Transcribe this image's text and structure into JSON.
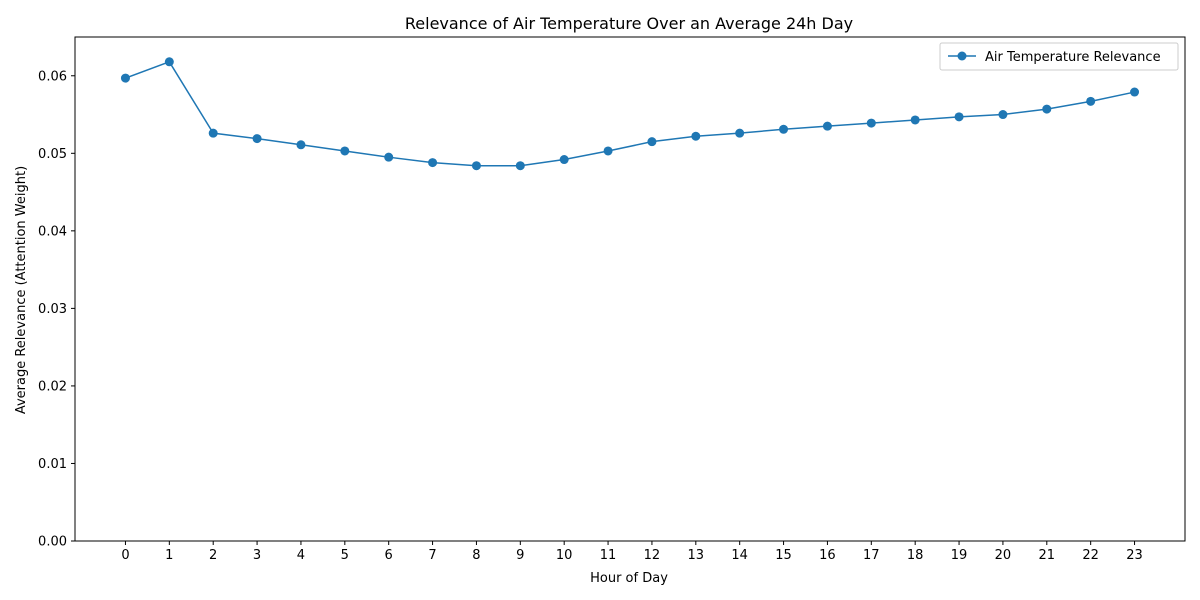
{
  "chart_data": {
    "type": "line",
    "title": "Relevance of Air Temperature Over an Average 24h Day",
    "xlabel": "Hour of Day",
    "ylabel": "Average Relevance (Attention Weight)",
    "x": [
      0,
      1,
      2,
      3,
      4,
      5,
      6,
      7,
      8,
      9,
      10,
      11,
      12,
      13,
      14,
      15,
      16,
      17,
      18,
      19,
      20,
      21,
      22,
      23
    ],
    "x_tick_labels": [
      "0",
      "1",
      "2",
      "3",
      "4",
      "5",
      "6",
      "7",
      "8",
      "9",
      "10",
      "11",
      "12",
      "13",
      "14",
      "15",
      "16",
      "17",
      "18",
      "19",
      "20",
      "21",
      "22",
      "23"
    ],
    "y_tick_labels": [
      "0.00",
      "0.01",
      "0.02",
      "0.03",
      "0.04",
      "0.05",
      "0.06"
    ],
    "y_ticks": [
      0,
      0.01,
      0.02,
      0.03,
      0.04,
      0.05,
      0.06
    ],
    "xlim": [
      -1.15,
      24.15
    ],
    "ylim": [
      0,
      0.065
    ],
    "grid": false,
    "legend_position": "top-right",
    "series": [
      {
        "name": "Air Temperature Relevance",
        "color": "#1f77b4",
        "marker": "circle",
        "values": [
          0.0597,
          0.0618,
          0.0526,
          0.0519,
          0.0511,
          0.0503,
          0.0495,
          0.0488,
          0.0484,
          0.0484,
          0.0492,
          0.0503,
          0.0515,
          0.0522,
          0.0526,
          0.0531,
          0.0535,
          0.0539,
          0.0543,
          0.0547,
          0.055,
          0.0557,
          0.0567,
          0.0579
        ]
      }
    ]
  }
}
